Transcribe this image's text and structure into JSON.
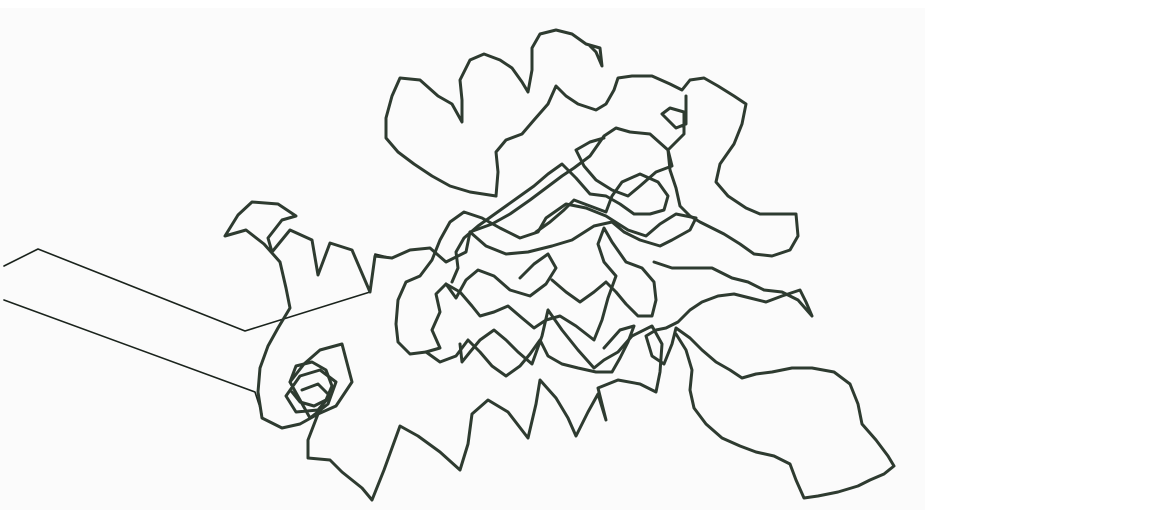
{
  "image": {
    "subject": "protein-backbone-trace",
    "colors": {
      "background": "#ffffff",
      "panel": "#fbfbfb",
      "trace": "#2e3b30",
      "trace_dark": "#1a231c"
    }
  }
}
